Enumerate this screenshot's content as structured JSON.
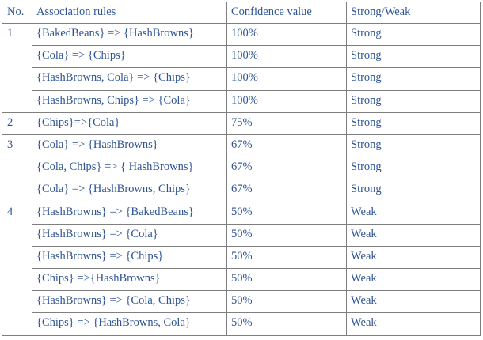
{
  "header": {
    "no": "No.",
    "rule": "Association rules",
    "confidence": "Confidence value",
    "strength": "Strong/Weak"
  },
  "groups": [
    {
      "no": "1",
      "rows": [
        {
          "rule": "{BakedBeans} => {HashBrowns}",
          "confidence": "100%",
          "strength": "Strong"
        },
        {
          "rule": "{Cola} => {Chips}",
          "confidence": "100%",
          "strength": "Strong"
        },
        {
          "rule": "{HashBrowns, Cola} => {Chips}",
          "confidence": "100%",
          "strength": "Strong"
        },
        {
          "rule": "{HashBrowns, Chips} => {Cola}",
          "confidence": "100%",
          "strength": "Strong"
        }
      ]
    },
    {
      "no": "2",
      "rows": [
        {
          "rule": "{Chips}=>{Cola}",
          "confidence": "75%",
          "strength": "Strong"
        }
      ]
    },
    {
      "no": "3",
      "rows": [
        {
          "rule": "{Cola} => {HashBrowns}",
          "confidence": "67%",
          "strength": "Strong"
        },
        {
          "rule": "{Cola, Chips} => { HashBrowns}",
          "confidence": "67%",
          "strength": "Strong"
        },
        {
          "rule": "{Cola} => {HashBrowns, Chips}",
          "confidence": "67%",
          "strength": "Strong"
        }
      ]
    },
    {
      "no": "4",
      "rows": [
        {
          "rule": "{HashBrowns} => {BakedBeans}",
          "confidence": "50%",
          "strength": "Weak"
        },
        {
          "rule": "{HashBrowns}  => {Cola}",
          "confidence": "50%",
          "strength": "Weak"
        },
        {
          "rule": "{HashBrowns} => {Chips}",
          "confidence": "50%",
          "strength": "Weak"
        },
        {
          "rule": "{Chips} =>{HashBrowns}",
          "confidence": "50%",
          "strength": "Weak"
        },
        {
          "rule": "{HashBrowns} => {Cola, Chips}",
          "confidence": "50%",
          "strength": "Weak"
        },
        {
          "rule": "{Chips} => {HashBrowns, Cola}",
          "confidence": "50%",
          "strength": "Weak"
        }
      ]
    }
  ]
}
